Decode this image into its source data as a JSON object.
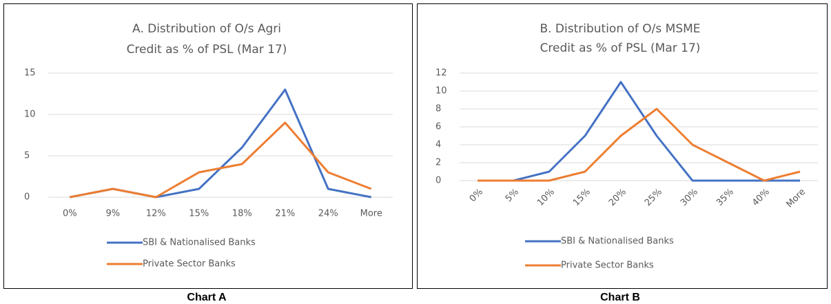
{
  "chart_data": [
    {
      "type": "line",
      "title": [
        "A. Distribution of O/s Agri",
        "Credit as % of PSL (Mar 17)"
      ],
      "caption": "Chart A",
      "categories": [
        "0%",
        "9%",
        "12%",
        "15%",
        "18%",
        "21%",
        "24%",
        "More"
      ],
      "series": [
        {
          "name": "SBI & Nationalised Banks",
          "color": "#4472c4",
          "values": [
            0,
            1,
            0,
            1,
            6,
            13,
            1,
            0
          ]
        },
        {
          "name": "Private Sector Banks",
          "color": "#ed7d31",
          "values": [
            0,
            1,
            0,
            3,
            4,
            9,
            3,
            1
          ]
        }
      ],
      "ylim": [
        0,
        15
      ],
      "yticks": [
        0,
        5,
        10,
        15
      ],
      "grid": true,
      "legend": "bottom"
    },
    {
      "type": "line",
      "title": [
        "B. Distribution of O/s MSME",
        "Credit as % of PSL (Mar 17)"
      ],
      "caption": "Chart B",
      "categories": [
        "0%",
        "5%",
        "10%",
        "15%",
        "20%",
        "25%",
        "30%",
        "35%",
        "40%",
        "More"
      ],
      "series": [
        {
          "name": "SBI & Nationalised Banks",
          "color": "#4472c4",
          "values": [
            0,
            0,
            1,
            5,
            11,
            5,
            0,
            0,
            0,
            0
          ]
        },
        {
          "name": "Private Sector Banks",
          "color": "#ed7d31",
          "values": [
            0,
            0,
            0,
            1,
            5,
            8,
            4,
            2,
            0,
            1
          ]
        }
      ],
      "ylim": [
        0,
        12
      ],
      "yticks": [
        0,
        2,
        4,
        6,
        8,
        10,
        12
      ],
      "grid": true,
      "legend": "bottom",
      "x_label_rotation": -45
    }
  ]
}
